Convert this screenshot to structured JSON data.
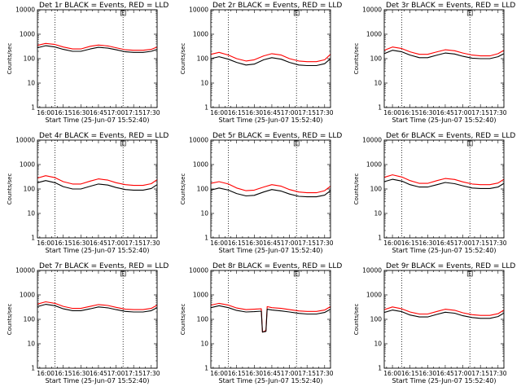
{
  "chart_data": [
    {
      "type": "line",
      "title": "Det 1r BLACK = Events, RED = LLD",
      "xlabel": "Start Time (25-Jun-07 15:52:40)",
      "ylabel": "Counts/sec",
      "yscale": "log",
      "ylim": [
        1,
        10000
      ],
      "xlim": [
        "15:53",
        "17:35"
      ],
      "xtick_labels": [
        "16:00",
        "16:15",
        "16:30",
        "16:45",
        "17:00",
        "17:15",
        "17:30"
      ],
      "ytick_labels": [
        "1",
        "10",
        "100",
        "1000",
        "10000"
      ],
      "vlines": [
        "16:08",
        "17:06"
      ],
      "marker_label": "E",
      "x": [
        "15:53",
        "16:00",
        "16:08",
        "16:15",
        "16:23",
        "16:30",
        "16:38",
        "16:45",
        "16:53",
        "17:00",
        "17:08",
        "17:15",
        "17:23",
        "17:30",
        "17:35"
      ],
      "series": [
        {
          "name": "RED = LLD",
          "color": "#ff0000",
          "values": [
            350,
            420,
            380,
            300,
            250,
            250,
            320,
            360,
            330,
            280,
            230,
            220,
            220,
            240,
            300
          ]
        },
        {
          "name": "BLACK = Events",
          "color": "#000000",
          "values": [
            280,
            340,
            300,
            240,
            200,
            200,
            250,
            290,
            270,
            230,
            190,
            180,
            180,
            200,
            240
          ]
        }
      ]
    },
    {
      "type": "line",
      "title": "Det 2r BLACK = Events, RED = LLD",
      "xlabel": "Start Time (25-Jun-07 15:52:40)",
      "ylabel": "Counts/sec",
      "yscale": "log",
      "ylim": [
        1,
        10000
      ],
      "xlim": [
        "15:53",
        "17:35"
      ],
      "xtick_labels": [
        "16:00",
        "16:15",
        "16:30",
        "16:45",
        "17:00",
        "17:15",
        "17:30"
      ],
      "ytick_labels": [
        "1",
        "10",
        "100",
        "1000",
        "10000"
      ],
      "vlines": [
        "16:08",
        "17:06"
      ],
      "marker_label": "E",
      "x": [
        "15:53",
        "16:00",
        "16:08",
        "16:15",
        "16:23",
        "16:30",
        "16:38",
        "16:45",
        "16:53",
        "17:00",
        "17:08",
        "17:15",
        "17:23",
        "17:30",
        "17:35"
      ],
      "series": [
        {
          "name": "RED = LLD",
          "color": "#ff0000",
          "values": [
            150,
            180,
            140,
            100,
            80,
            90,
            130,
            160,
            140,
            100,
            80,
            75,
            75,
            90,
            150
          ]
        },
        {
          "name": "BLACK = Events",
          "color": "#000000",
          "values": [
            100,
            120,
            95,
            70,
            55,
            60,
            90,
            110,
            95,
            70,
            55,
            52,
            52,
            62,
            100
          ]
        }
      ]
    },
    {
      "type": "line",
      "title": "Det 3r BLACK = Events, RED = LLD",
      "xlabel": "Start Time (25-Jun-07 15:52:40)",
      "ylabel": "Counts/sec",
      "yscale": "log",
      "ylim": [
        1,
        10000
      ],
      "xlim": [
        "15:53",
        "17:35"
      ],
      "xtick_labels": [
        "16:00",
        "16:15",
        "16:30",
        "16:45",
        "17:00",
        "17:15",
        "17:30"
      ],
      "ytick_labels": [
        "1",
        "10",
        "100",
        "1000",
        "10000"
      ],
      "vlines": [
        "16:08",
        "17:06"
      ],
      "marker_label": "E",
      "x": [
        "15:53",
        "16:00",
        "16:08",
        "16:15",
        "16:23",
        "16:30",
        "16:38",
        "16:45",
        "16:53",
        "17:00",
        "17:08",
        "17:15",
        "17:23",
        "17:30",
        "17:35"
      ],
      "series": [
        {
          "name": "RED = LLD",
          "color": "#ff0000",
          "values": [
            220,
            300,
            260,
            190,
            150,
            150,
            190,
            230,
            210,
            170,
            140,
            130,
            130,
            160,
            220
          ]
        },
        {
          "name": "BLACK = Events",
          "color": "#000000",
          "values": [
            160,
            220,
            190,
            140,
            110,
            110,
            140,
            170,
            155,
            125,
            105,
            100,
            100,
            120,
            160
          ]
        }
      ]
    },
    {
      "type": "line",
      "title": "Det 4r BLACK = Events, RED = LLD",
      "xlabel": "Start Time (25-Jun-07 15:52:40)",
      "ylabel": "Counts/sec",
      "yscale": "log",
      "ylim": [
        1,
        10000
      ],
      "xlim": [
        "15:53",
        "17:35"
      ],
      "xtick_labels": [
        "16:00",
        "16:15",
        "16:30",
        "16:45",
        "17:00",
        "17:15",
        "17:30"
      ],
      "ytick_labels": [
        "1",
        "10",
        "100",
        "1000",
        "10000"
      ],
      "vlines": [
        "16:08",
        "17:06"
      ],
      "marker_label": "E",
      "x": [
        "15:53",
        "16:00",
        "16:08",
        "16:15",
        "16:23",
        "16:30",
        "16:38",
        "16:45",
        "16:53",
        "17:00",
        "17:08",
        "17:15",
        "17:23",
        "17:30",
        "17:35"
      ],
      "series": [
        {
          "name": "RED = LLD",
          "color": "#ff0000",
          "values": [
            280,
            350,
            290,
            200,
            160,
            160,
            210,
            260,
            230,
            180,
            150,
            140,
            140,
            165,
            240
          ]
        },
        {
          "name": "BLACK = Events",
          "color": "#000000",
          "values": [
            180,
            220,
            180,
            125,
            100,
            100,
            130,
            160,
            145,
            115,
            95,
            90,
            90,
            105,
            150
          ]
        }
      ]
    },
    {
      "type": "line",
      "title": "Det 5r BLACK = Events, RED = LLD",
      "xlabel": "Start Time (25-Jun-07 15:52:40)",
      "ylabel": "Counts/sec",
      "yscale": "log",
      "ylim": [
        1,
        10000
      ],
      "xlim": [
        "15:53",
        "17:35"
      ],
      "xtick_labels": [
        "16:00",
        "16:15",
        "16:30",
        "16:45",
        "17:00",
        "17:15",
        "17:30"
      ],
      "ytick_labels": [
        "1",
        "10",
        "100",
        "1000",
        "10000"
      ],
      "vlines": [
        "16:08",
        "17:06"
      ],
      "marker_label": "E",
      "x": [
        "15:53",
        "16:00",
        "16:08",
        "16:15",
        "16:23",
        "16:30",
        "16:38",
        "16:45",
        "16:53",
        "17:00",
        "17:08",
        "17:15",
        "17:23",
        "17:30",
        "17:35"
      ],
      "series": [
        {
          "name": "RED = LLD",
          "color": "#ff0000",
          "values": [
            170,
            200,
            160,
            110,
            85,
            90,
            120,
            150,
            130,
            95,
            75,
            70,
            70,
            85,
            130
          ]
        },
        {
          "name": "BLACK = Events",
          "color": "#000000",
          "values": [
            90,
            110,
            90,
            65,
            52,
            55,
            75,
            95,
            82,
            62,
            50,
            48,
            48,
            56,
            85
          ]
        }
      ]
    },
    {
      "type": "line",
      "title": "Det 6r BLACK = Events, RED = LLD",
      "xlabel": "Start Time (25-Jun-07 15:52:40)",
      "ylabel": "Counts/sec",
      "yscale": "log",
      "ylim": [
        1,
        10000
      ],
      "xlim": [
        "15:53",
        "17:35"
      ],
      "xtick_labels": [
        "16:00",
        "16:15",
        "16:30",
        "16:45",
        "17:00",
        "17:15",
        "17:30"
      ],
      "ytick_labels": [
        "1",
        "10",
        "100",
        "1000",
        "10000"
      ],
      "vlines": [
        "16:08",
        "17:06"
      ],
      "marker_label": "E",
      "x": [
        "15:53",
        "16:00",
        "16:08",
        "16:15",
        "16:23",
        "16:30",
        "16:38",
        "16:45",
        "16:53",
        "17:00",
        "17:08",
        "17:15",
        "17:23",
        "17:30",
        "17:35"
      ],
      "series": [
        {
          "name": "RED = LLD",
          "color": "#ff0000",
          "values": [
            300,
            380,
            310,
            220,
            170,
            170,
            220,
            270,
            245,
            195,
            160,
            150,
            150,
            175,
            250
          ]
        },
        {
          "name": "BLACK = Events",
          "color": "#000000",
          "values": [
            200,
            250,
            210,
            150,
            120,
            120,
            150,
            185,
            165,
            135,
            110,
            105,
            105,
            120,
            170
          ]
        }
      ]
    },
    {
      "type": "line",
      "title": "Det 7r BLACK = Events, RED = LLD",
      "xlabel": "Start Time (25-Jun-07 15:52:40)",
      "ylabel": "Counts/sec",
      "yscale": "log",
      "ylim": [
        1,
        10000
      ],
      "xlim": [
        "15:53",
        "17:35"
      ],
      "xtick_labels": [
        "16:00",
        "16:15",
        "16:30",
        "16:45",
        "17:00",
        "17:15",
        "17:30"
      ],
      "ytick_labels": [
        "1",
        "10",
        "100",
        "1000",
        "10000"
      ],
      "vlines": [
        "16:08",
        "17:06"
      ],
      "marker_label": "E",
      "x": [
        "15:53",
        "16:00",
        "16:08",
        "16:15",
        "16:23",
        "16:30",
        "16:38",
        "16:45",
        "16:53",
        "17:00",
        "17:08",
        "17:15",
        "17:23",
        "17:30",
        "17:35"
      ],
      "series": [
        {
          "name": "RED = LLD",
          "color": "#ff0000",
          "values": [
            420,
            520,
            450,
            340,
            280,
            280,
            340,
            400,
            370,
            310,
            260,
            250,
            250,
            280,
            380
          ]
        },
        {
          "name": "BLACK = Events",
          "color": "#000000",
          "values": [
            330,
            410,
            360,
            270,
            225,
            225,
            270,
            320,
            295,
            250,
            210,
            200,
            200,
            225,
            300
          ]
        }
      ]
    },
    {
      "type": "line",
      "title": "Det 8r BLACK = Events, RED = LLD",
      "xlabel": "Start Time (25-Jun-07 15:52:40)",
      "ylabel": "Counts/sec",
      "yscale": "log",
      "ylim": [
        1,
        10000
      ],
      "xlim": [
        "15:53",
        "17:35"
      ],
      "xtick_labels": [
        "16:00",
        "16:15",
        "16:30",
        "16:45",
        "17:00",
        "17:15",
        "17:30"
      ],
      "ytick_labels": [
        "1",
        "10",
        "100",
        "1000",
        "10000"
      ],
      "vlines": [
        "16:08",
        "17:06"
      ],
      "marker_label": "E",
      "x": [
        "15:53",
        "16:00",
        "16:08",
        "16:15",
        "16:23",
        "16:30",
        "16:36",
        "16:37",
        "16:40",
        "16:41",
        "16:45",
        "16:53",
        "17:00",
        "17:08",
        "17:15",
        "17:23",
        "17:30",
        "17:35"
      ],
      "series": [
        {
          "name": "RED = LLD",
          "color": "#ff0000",
          "values": [
            380,
            450,
            380,
            290,
            250,
            260,
            270,
            30,
            35,
            330,
            300,
            280,
            250,
            220,
            210,
            210,
            240,
            330
          ]
        },
        {
          "name": "BLACK = Events",
          "color": "#000000",
          "values": [
            300,
            360,
            300,
            230,
            200,
            205,
            215,
            30,
            32,
            260,
            240,
            220,
            200,
            175,
            165,
            165,
            190,
            260
          ]
        }
      ]
    },
    {
      "type": "line",
      "title": "Det 9r BLACK = Events, RED = LLD",
      "xlabel": "Start Time (25-Jun-07 15:52:40)",
      "ylabel": "Counts/sec",
      "yscale": "log",
      "ylim": [
        1,
        10000
      ],
      "xlim": [
        "15:53",
        "17:35"
      ],
      "xtick_labels": [
        "16:00",
        "16:15",
        "16:30",
        "16:45",
        "17:00",
        "17:15",
        "17:30"
      ],
      "ytick_labels": [
        "1",
        "10",
        "100",
        "1000",
        "10000"
      ],
      "vlines": [
        "16:08",
        "17:06"
      ],
      "marker_label": "E",
      "x": [
        "15:53",
        "16:00",
        "16:08",
        "16:15",
        "16:23",
        "16:30",
        "16:38",
        "16:45",
        "16:53",
        "17:00",
        "17:08",
        "17:15",
        "17:23",
        "17:30",
        "17:35"
      ],
      "series": [
        {
          "name": "RED = LLD",
          "color": "#ff0000",
          "values": [
            250,
            320,
            270,
            200,
            165,
            165,
            210,
            260,
            235,
            185,
            155,
            145,
            145,
            170,
            240
          ]
        },
        {
          "name": "BLACK = Events",
          "color": "#000000",
          "values": [
            190,
            240,
            205,
            150,
            125,
            125,
            160,
            195,
            178,
            140,
            118,
            110,
            110,
            130,
            180
          ]
        }
      ]
    }
  ]
}
